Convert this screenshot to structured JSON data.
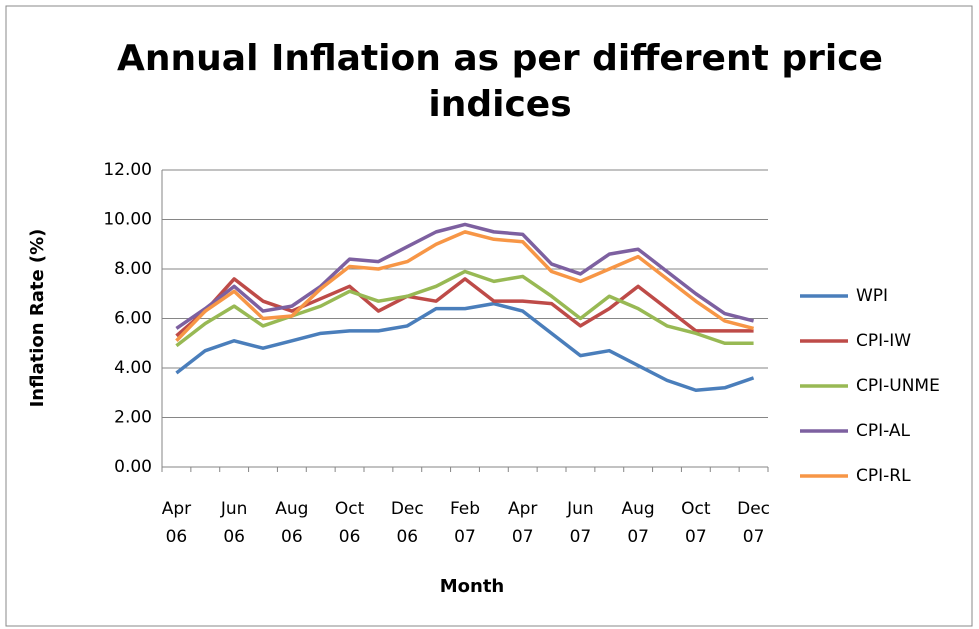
{
  "chart_data": {
    "type": "line",
    "title": "Annual Inflation as per different price indices",
    "x_label": "Month",
    "y_label": "Inflation Rate (%)",
    "categories": [
      "Apr 06",
      null,
      "Jun 06",
      null,
      "Aug 06",
      null,
      "Oct 06",
      null,
      "Dec 06",
      null,
      "Feb 07",
      null,
      "Apr 07",
      null,
      "Jun 07",
      null,
      "Aug 07",
      null,
      "Oct 07",
      null,
      "Dec 07"
    ],
    "ylim": [
      0,
      12
    ],
    "yticks": [
      {
        "value": 0,
        "label": "0.00"
      },
      {
        "value": 2,
        "label": "2.00"
      },
      {
        "value": 4,
        "label": "4.00"
      },
      {
        "value": 6,
        "label": "6.00"
      },
      {
        "value": 8,
        "label": "8.00"
      },
      {
        "value": 10,
        "label": "10.00"
      },
      {
        "value": 12,
        "label": "12.00"
      }
    ],
    "grid": true,
    "legend": "right",
    "series": [
      {
        "name": "WPI",
        "color": "#4a7ebb",
        "values": [
          3.8,
          4.7,
          5.1,
          4.8,
          5.1,
          5.4,
          5.5,
          5.5,
          5.7,
          6.4,
          6.4,
          6.6,
          6.3,
          5.4,
          4.5,
          4.7,
          4.1,
          3.5,
          3.1,
          3.2,
          3.6
        ]
      },
      {
        "name": "CPI-IW",
        "color": "#be4b48",
        "values": [
          5.3,
          6.3,
          7.6,
          6.7,
          6.3,
          6.8,
          7.3,
          6.3,
          6.9,
          6.7,
          7.6,
          6.7,
          6.7,
          6.6,
          5.7,
          6.4,
          7.3,
          6.4,
          5.5,
          5.5,
          5.5
        ]
      },
      {
        "name": "CPI-UNME",
        "color": "#98b954",
        "values": [
          4.9,
          5.8,
          6.5,
          5.7,
          6.1,
          6.5,
          7.1,
          6.7,
          6.9,
          7.3,
          7.9,
          7.5,
          7.7,
          6.9,
          6.0,
          6.9,
          6.4,
          5.7,
          5.4,
          5.0,
          5.0
        ]
      },
      {
        "name": "CPI-AL",
        "color": "#7d60a0",
        "values": [
          5.6,
          6.4,
          7.3,
          6.3,
          6.5,
          7.3,
          8.4,
          8.3,
          8.9,
          9.5,
          9.8,
          9.5,
          9.4,
          8.2,
          7.8,
          8.6,
          8.8,
          7.9,
          7.0,
          6.2,
          5.9
        ]
      },
      {
        "name": "CPI-RL",
        "color": "#f79646",
        "values": [
          5.1,
          6.3,
          7.1,
          6.0,
          6.1,
          7.2,
          8.1,
          8.0,
          8.3,
          9.0,
          9.5,
          9.2,
          9.1,
          7.9,
          7.5,
          8.0,
          8.5,
          7.6,
          6.7,
          5.9,
          5.6
        ]
      }
    ]
  }
}
